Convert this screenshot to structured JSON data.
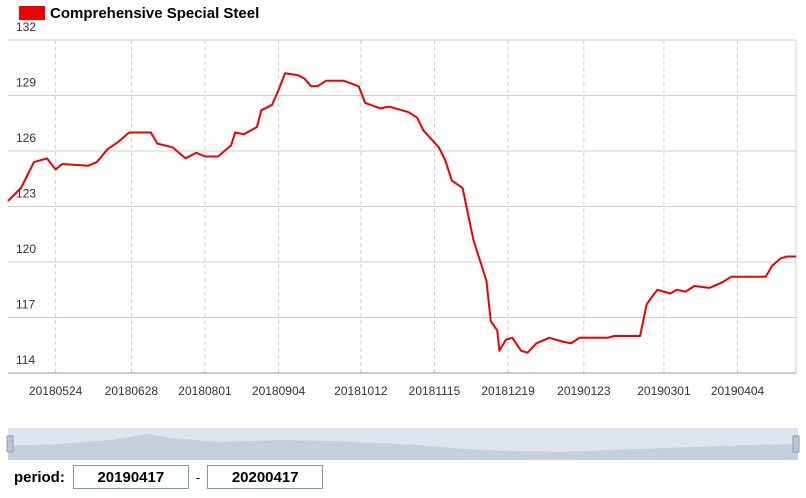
{
  "chart_data": {
    "type": "line",
    "x": [
      "20180502",
      "20180508",
      "20180514",
      "20180520",
      "20180524",
      "20180527",
      "20180608",
      "20180612",
      "20180617",
      "20180622",
      "20180627",
      "20180707",
      "20180710",
      "20180717",
      "20180723",
      "20180728",
      "20180801",
      "20180807",
      "20180813",
      "20180815",
      "20180819",
      "20180825",
      "20180827",
      "20180901",
      "20180904",
      "20180907",
      "20180913",
      "20180916",
      "20180919",
      "20180922",
      "20180926",
      "20181004",
      "20181011",
      "20181014",
      "20181021",
      "20181025",
      "20181103",
      "20181107",
      "20181110",
      "20181117",
      "20181120",
      "20181123",
      "20181128",
      "20181203",
      "20181206",
      "20181209",
      "20181211",
      "20181214",
      "20181215",
      "20181218",
      "20181221",
      "20181225",
      "20181228",
      "20190101",
      "20190107",
      "20190113",
      "20190117",
      "20190121",
      "20190203",
      "20190206",
      "20190218",
      "20190221",
      "20190224",
      "20190226",
      "20190304",
      "20190307",
      "20190311",
      "20190315",
      "20190322",
      "20190328",
      "20190401",
      "20190417",
      "20190420",
      "20190424",
      "20190427",
      "20190501"
    ],
    "series": [
      {
        "name": "Comprehensive Special Steel",
        "color": "#ee0000",
        "values": [
          123.3,
          124.0,
          125.4,
          125.6,
          125.0,
          125.3,
          125.2,
          125.4,
          126.1,
          126.5,
          127.0,
          127.0,
          126.4,
          126.2,
          125.6,
          125.9,
          125.7,
          125.7,
          126.3,
          127.0,
          126.9,
          127.3,
          128.2,
          128.5,
          129.3,
          130.2,
          130.1,
          129.9,
          129.5,
          129.5,
          129.8,
          129.8,
          129.5,
          128.6,
          128.3,
          128.4,
          128.1,
          127.8,
          127.1,
          126.2,
          125.5,
          124.4,
          124.0,
          121.2,
          120.1,
          119.0,
          116.8,
          116.3,
          115.2,
          115.8,
          115.9,
          115.2,
          115.1,
          115.6,
          115.9,
          115.7,
          115.6,
          115.9,
          115.9,
          116.0,
          116.0,
          117.7,
          118.2,
          118.5,
          118.3,
          118.5,
          118.4,
          118.7,
          118.6,
          118.9,
          119.2,
          119.2,
          119.8,
          120.2,
          120.3,
          120.3
        ]
      }
    ],
    "xlim": [
      "20180502",
      "20190501"
    ],
    "xticks": [
      "20180524",
      "20180628",
      "20180801",
      "20180904",
      "20181012",
      "20181115",
      "20181219",
      "20190123",
      "20190301",
      "20190404"
    ],
    "ylim": [
      114,
      132
    ],
    "yticks": [
      114,
      117,
      120,
      123,
      126,
      129,
      132
    ],
    "grid": true
  },
  "period": {
    "label": "period:",
    "start": "20190417",
    "separator": "-",
    "end": "20200417"
  }
}
